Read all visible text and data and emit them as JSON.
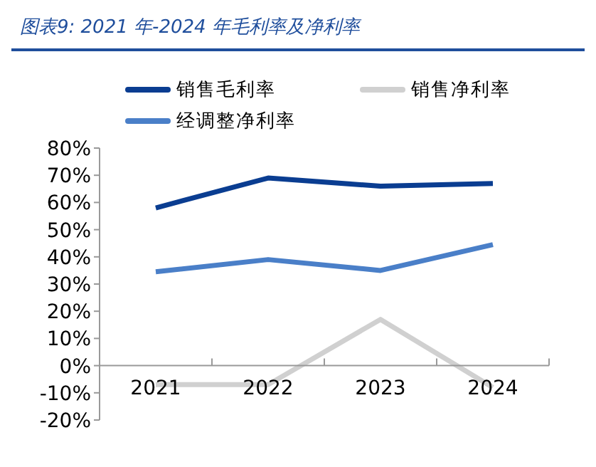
{
  "chart_data": {
    "type": "line",
    "title": "图表9:  2021 年-2024 年毛利率及净利率",
    "categories": [
      "2021",
      "2022",
      "2023",
      "2024"
    ],
    "series": [
      {
        "name": "销售毛利率",
        "color": "#0a3d91",
        "values": [
          58,
          69,
          66,
          67
        ]
      },
      {
        "name": "销售净利率",
        "color": "#d0d0d0",
        "values": [
          -7,
          -7,
          17,
          -8
        ]
      },
      {
        "name": "经调整净利率",
        "color": "#4a7fc8",
        "values": [
          34.5,
          39,
          35,
          44.5
        ]
      }
    ],
    "ylim": [
      -20,
      80
    ],
    "yticks": [
      {
        "value": -20,
        "label": "-20%"
      },
      {
        "value": -10,
        "label": "-10%"
      },
      {
        "value": 0,
        "label": "0%"
      },
      {
        "value": 10,
        "label": "10%"
      },
      {
        "value": 20,
        "label": "20%"
      },
      {
        "value": 30,
        "label": "30%"
      },
      {
        "value": 40,
        "label": "40%"
      },
      {
        "value": 50,
        "label": "50%"
      },
      {
        "value": 60,
        "label": "60%"
      },
      {
        "value": 70,
        "label": "70%"
      },
      {
        "value": 80,
        "label": "80%"
      }
    ],
    "grid": false,
    "legend": "top",
    "marker": "none",
    "line_style": "solid"
  }
}
